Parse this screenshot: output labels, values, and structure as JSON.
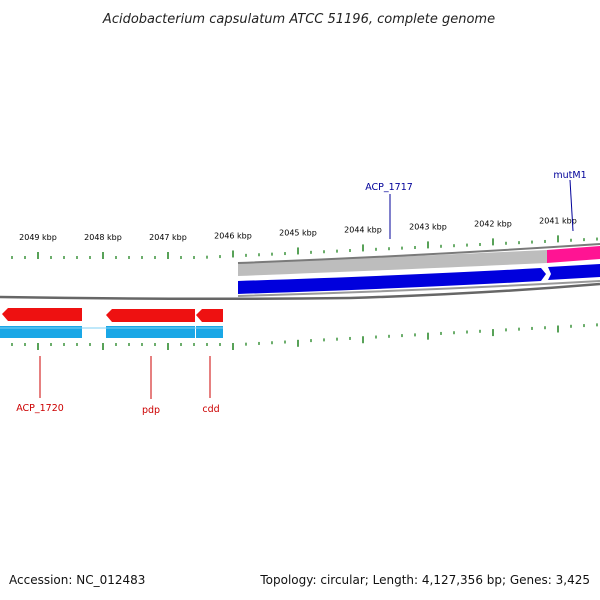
{
  "title": "Acidobacterium capsulatum ATCC 51196, complete genome",
  "accession": "Accession: NC_012483",
  "summary": "Topology: circular; Length: 4,127,356 bp; Genes: 3,425",
  "colors": {
    "tick": "#2e8b2e",
    "forward_gene": "#0000dd",
    "forward_gene_bar": "#b8b8b8",
    "reverse_gene": "#ee1111",
    "reverse_gene_bar": "#1aa7e6",
    "special_gene": "#ff1493",
    "backbone": "#777777",
    "forward_label": "#000099",
    "reverse_label": "#cc0000"
  },
  "scale_labels": [
    "2049 kbp",
    "2048 kbp",
    "2047 kbp",
    "2046 kbp",
    "2045 kbp",
    "2044 kbp",
    "2043 kbp",
    "2042 kbp",
    "2041 kbp"
  ],
  "genes": {
    "forward": [
      {
        "name": "ACP_1717",
        "color": "blue"
      },
      {
        "name": "mutM1",
        "color": "magenta"
      }
    ],
    "reverse": [
      {
        "name": "ACP_1720"
      },
      {
        "name": "pdp"
      },
      {
        "name": "cdd"
      }
    ]
  }
}
